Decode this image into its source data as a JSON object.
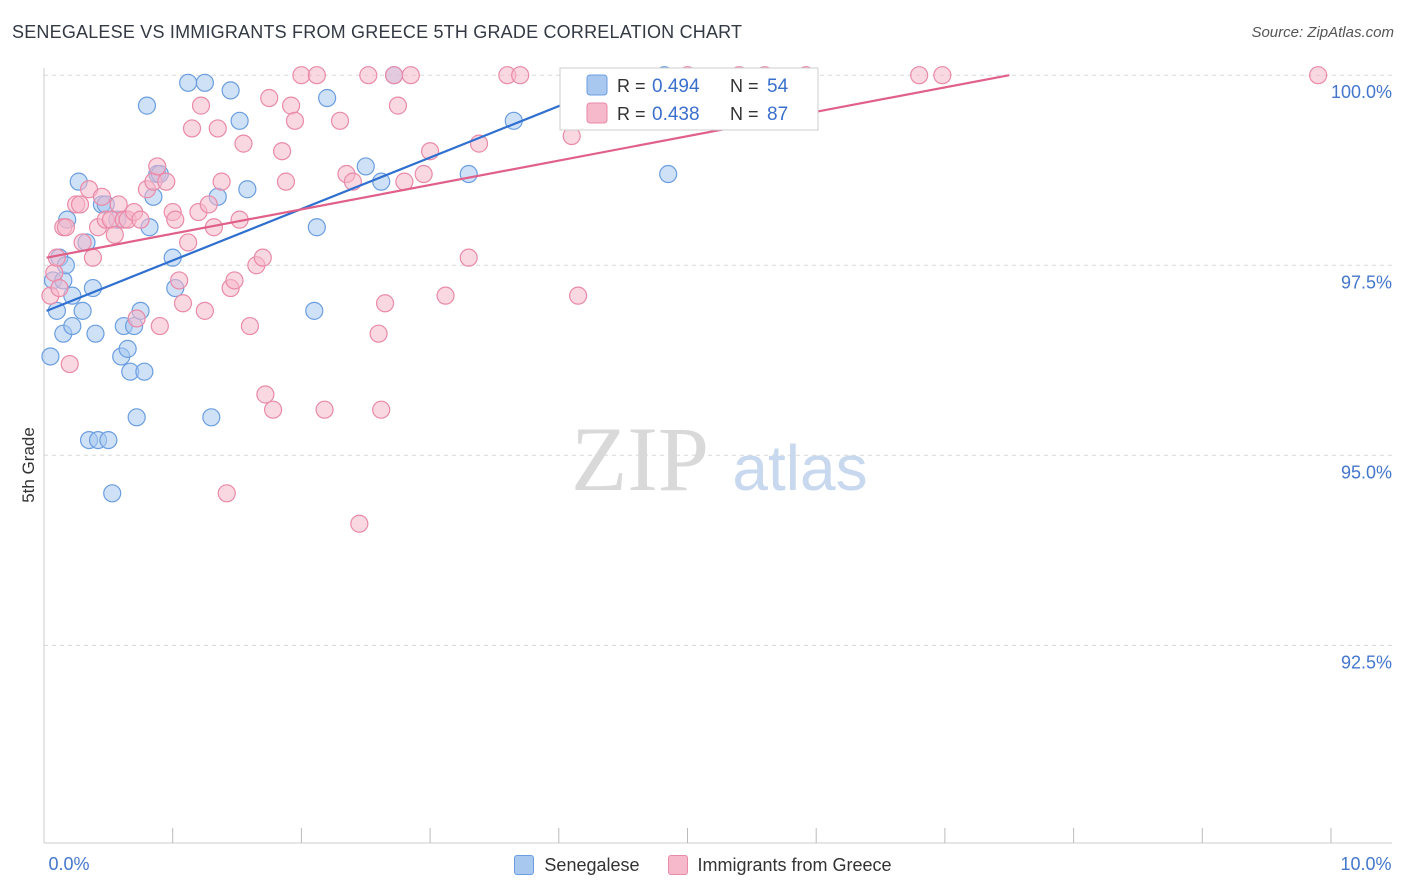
{
  "title": "SENEGALESE VS IMMIGRANTS FROM GREECE 5TH GRADE CORRELATION CHART",
  "source": "Source: ZipAtlas.com",
  "watermark": {
    "zip": "ZIP",
    "atlas": "atlas"
  },
  "colors": {
    "blue_fill": "#a8c8f0",
    "blue_stroke": "#6b9ee0",
    "blue_line": "#2f6fd0",
    "pink_fill": "#f6b8cb",
    "pink_stroke": "#e98aa8",
    "pink_line": "#e0608a",
    "axis_text": "#4477cc",
    "grid": "#d8d8d8"
  },
  "chart_data": {
    "type": "scatter",
    "xlabel": "",
    "ylabel": "5th Grade",
    "xlim": [
      0,
      10
    ],
    "ylim": [
      89.9,
      100.2
    ],
    "x_tick_labels": [
      {
        "value": 0,
        "label": "0.0%"
      },
      {
        "value": 10,
        "label": "10.0%"
      }
    ],
    "y_tick_labels": [
      {
        "value": 100,
        "label": "100.0%"
      },
      {
        "value": 97.5,
        "label": "97.5%"
      },
      {
        "value": 95,
        "label": "95.0%"
      },
      {
        "value": 92.5,
        "label": "92.5%"
      }
    ],
    "stats": [
      {
        "r_label": "R =",
        "r_value": "0.494",
        "n_label": "N =",
        "n_value": "54"
      },
      {
        "r_label": "R =",
        "r_value": "0.438",
        "n_label": "N =",
        "n_value": "87"
      }
    ],
    "series": [
      {
        "name": "Senegalese",
        "color": "blue",
        "trend": {
          "x0": 0.02,
          "y0": 96.9,
          "x1": 4.6,
          "y1": 100.0
        },
        "points": [
          [
            0.05,
            96.3
          ],
          [
            0.07,
            97.3
          ],
          [
            0.1,
            96.9
          ],
          [
            0.12,
            97.6
          ],
          [
            0.15,
            97.3
          ],
          [
            0.15,
            96.6
          ],
          [
            0.17,
            97.5
          ],
          [
            0.18,
            98.1
          ],
          [
            0.22,
            96.7
          ],
          [
            0.22,
            97.1
          ],
          [
            0.27,
            98.6
          ],
          [
            0.3,
            96.9
          ],
          [
            0.33,
            97.8
          ],
          [
            0.35,
            95.2
          ],
          [
            0.38,
            97.2
          ],
          [
            0.4,
            96.6
          ],
          [
            0.42,
            95.2
          ],
          [
            0.45,
            98.3
          ],
          [
            0.48,
            98.3
          ],
          [
            0.5,
            95.2
          ],
          [
            0.53,
            94.5
          ],
          [
            0.57,
            98.1
          ],
          [
            0.6,
            96.3
          ],
          [
            0.62,
            96.7
          ],
          [
            0.65,
            96.4
          ],
          [
            0.67,
            96.1
          ],
          [
            0.7,
            96.7
          ],
          [
            0.72,
            95.5
          ],
          [
            0.75,
            96.9
          ],
          [
            0.78,
            96.1
          ],
          [
            0.8,
            99.6
          ],
          [
            0.82,
            98.0
          ],
          [
            0.85,
            98.4
          ],
          [
            0.88,
            98.7
          ],
          [
            0.9,
            98.7
          ],
          [
            1.0,
            97.6
          ],
          [
            1.02,
            97.2
          ],
          [
            1.12,
            99.9
          ],
          [
            1.25,
            99.9
          ],
          [
            1.3,
            95.5
          ],
          [
            1.35,
            98.4
          ],
          [
            1.45,
            99.8
          ],
          [
            1.52,
            99.4
          ],
          [
            1.58,
            98.5
          ],
          [
            2.12,
            98.0
          ],
          [
            2.1,
            96.9
          ],
          [
            2.2,
            99.7
          ],
          [
            2.5,
            98.8
          ],
          [
            2.62,
            98.6
          ],
          [
            2.72,
            100.0
          ],
          [
            3.3,
            98.7
          ],
          [
            3.65,
            99.4
          ],
          [
            4.82,
            100.0
          ],
          [
            4.85,
            98.7
          ]
        ]
      },
      {
        "name": "Immigrants from Greece",
        "color": "pink",
        "trend": {
          "x0": 0.02,
          "y0": 97.6,
          "x1": 7.5,
          "y1": 100.0
        },
        "points": [
          [
            0.05,
            97.1
          ],
          [
            0.08,
            97.4
          ],
          [
            0.1,
            97.6
          ],
          [
            0.12,
            97.2
          ],
          [
            0.15,
            98.0
          ],
          [
            0.17,
            98.0
          ],
          [
            0.2,
            96.2
          ],
          [
            0.25,
            98.3
          ],
          [
            0.28,
            98.3
          ],
          [
            0.3,
            97.8
          ],
          [
            0.35,
            98.5
          ],
          [
            0.38,
            97.6
          ],
          [
            0.42,
            98.0
          ],
          [
            0.45,
            98.4
          ],
          [
            0.48,
            98.1
          ],
          [
            0.52,
            98.1
          ],
          [
            0.55,
            97.9
          ],
          [
            0.58,
            98.3
          ],
          [
            0.62,
            98.1
          ],
          [
            0.65,
            98.1
          ],
          [
            0.7,
            98.2
          ],
          [
            0.72,
            96.8
          ],
          [
            0.75,
            98.1
          ],
          [
            0.8,
            98.5
          ],
          [
            0.85,
            98.6
          ],
          [
            0.88,
            98.8
          ],
          [
            0.9,
            96.7
          ],
          [
            0.95,
            98.6
          ],
          [
            1.0,
            98.2
          ],
          [
            1.02,
            98.1
          ],
          [
            1.05,
            97.3
          ],
          [
            1.08,
            97.0
          ],
          [
            1.12,
            97.8
          ],
          [
            1.15,
            99.3
          ],
          [
            1.2,
            98.2
          ],
          [
            1.22,
            99.6
          ],
          [
            1.25,
            96.9
          ],
          [
            1.28,
            98.3
          ],
          [
            1.32,
            98.0
          ],
          [
            1.35,
            99.3
          ],
          [
            1.38,
            98.6
          ],
          [
            1.42,
            94.5
          ],
          [
            1.45,
            97.2
          ],
          [
            1.48,
            97.3
          ],
          [
            1.52,
            98.1
          ],
          [
            1.55,
            99.1
          ],
          [
            1.6,
            96.7
          ],
          [
            1.65,
            97.5
          ],
          [
            1.7,
            97.6
          ],
          [
            1.72,
            95.8
          ],
          [
            1.75,
            99.7
          ],
          [
            1.78,
            95.6
          ],
          [
            1.85,
            99.0
          ],
          [
            1.88,
            98.6
          ],
          [
            1.92,
            99.6
          ],
          [
            1.95,
            99.4
          ],
          [
            2.0,
            100.0
          ],
          [
            2.12,
            100.0
          ],
          [
            2.18,
            95.6
          ],
          [
            2.35,
            98.7
          ],
          [
            2.4,
            98.6
          ],
          [
            2.45,
            94.1
          ],
          [
            2.52,
            100.0
          ],
          [
            2.6,
            96.6
          ],
          [
            2.62,
            95.6
          ],
          [
            2.65,
            97.0
          ],
          [
            2.72,
            100.0
          ],
          [
            2.75,
            99.6
          ],
          [
            2.8,
            98.6
          ],
          [
            2.85,
            100.0
          ],
          [
            2.95,
            98.7
          ],
          [
            3.0,
            99.0
          ],
          [
            3.12,
            97.1
          ],
          [
            3.3,
            97.6
          ],
          [
            3.38,
            99.1
          ],
          [
            3.6,
            100.0
          ],
          [
            3.7,
            100.0
          ],
          [
            4.1,
            99.2
          ],
          [
            4.15,
            97.1
          ],
          [
            5.0,
            100.0
          ],
          [
            5.4,
            100.0
          ],
          [
            5.6,
            100.0
          ],
          [
            5.92,
            100.0
          ],
          [
            6.8,
            100.0
          ],
          [
            6.98,
            100.0
          ],
          [
            9.9,
            100.0
          ],
          [
            2.3,
            99.4
          ]
        ]
      }
    ]
  }
}
